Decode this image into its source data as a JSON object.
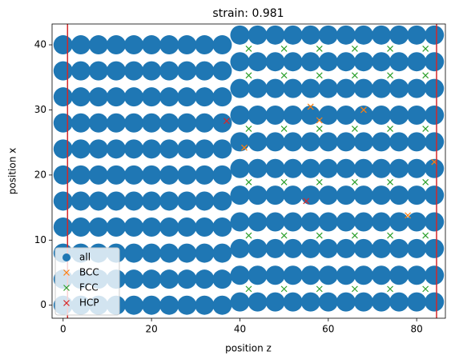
{
  "chart_data": {
    "type": "scatter",
    "title": "strain: 0.981",
    "xlabel": "position z",
    "ylabel": "position x",
    "xlim": [
      -2.5,
      86.5
    ],
    "ylim": [
      -2,
      43.2
    ],
    "xticks": [
      0,
      20,
      40,
      60,
      80
    ],
    "yticks": [
      0,
      10,
      20,
      30,
      40
    ],
    "legend": "lower left",
    "vlines": {
      "color": "#d62728",
      "values": [
        1,
        84.5
      ]
    },
    "series": [
      {
        "name": "all",
        "color": "#1f77b4",
        "marker": "o",
        "x": [
          0,
          0,
          0,
          0,
          0,
          0,
          0,
          0,
          0,
          0,
          0,
          4,
          4,
          4,
          4,
          4,
          4,
          4,
          4,
          4,
          4,
          4,
          8,
          8,
          8,
          8,
          8,
          8,
          8,
          8,
          8,
          8,
          8,
          12,
          12,
          12,
          12,
          12,
          12,
          12,
          12,
          12,
          12,
          12,
          16,
          16,
          16,
          16,
          16,
          16,
          16,
          16,
          16,
          16,
          16,
          20,
          20,
          20,
          20,
          20,
          20,
          20,
          20,
          20,
          20,
          20,
          24,
          24,
          24,
          24,
          24,
          24,
          24,
          24,
          24,
          24,
          24,
          28,
          28,
          28,
          28,
          28,
          28,
          28,
          28,
          28,
          28,
          28,
          32,
          32,
          32,
          32,
          32,
          32,
          32,
          32,
          32,
          32,
          32,
          36,
          36,
          36,
          36,
          36,
          36,
          36,
          36,
          36,
          36,
          36,
          40,
          40,
          40,
          40,
          40,
          40,
          40,
          40,
          40,
          40,
          40,
          44,
          44,
          44,
          44,
          44,
          44,
          44,
          44,
          44,
          44,
          44,
          48,
          48,
          48,
          48,
          48,
          48,
          48,
          48,
          48,
          48,
          48,
          52,
          52,
          52,
          52,
          52,
          52,
          52,
          52,
          52,
          52,
          52,
          56,
          56,
          56,
          56,
          56,
          56,
          56,
          56,
          56,
          56,
          56,
          60,
          60,
          60,
          60,
          60,
          60,
          60,
          60,
          60,
          60,
          60,
          64,
          64,
          64,
          64,
          64,
          64,
          64,
          64,
          64,
          64,
          64,
          68,
          68,
          68,
          68,
          68,
          68,
          68,
          68,
          68,
          68,
          68,
          72,
          72,
          72,
          72,
          72,
          72,
          72,
          72,
          72,
          72,
          72,
          76,
          76,
          76,
          76,
          76,
          76,
          76,
          76,
          76,
          76,
          76,
          80,
          80,
          80,
          80,
          80,
          80,
          80,
          80,
          80,
          80,
          80,
          84,
          84,
          84,
          84,
          84,
          84,
          84,
          84,
          84,
          84,
          84
        ],
        "values": [
          0,
          4,
          8,
          12,
          16,
          20,
          24,
          28,
          32,
          36,
          40,
          0,
          4,
          8,
          12,
          16,
          20,
          24,
          28,
          32,
          36,
          40,
          0,
          4,
          8,
          12,
          16,
          20,
          24,
          28,
          32,
          36,
          40,
          0,
          4,
          8,
          12,
          16,
          20,
          24,
          28,
          32,
          36,
          40,
          0,
          4,
          8,
          12,
          16,
          20,
          24,
          28,
          32,
          36,
          40,
          0,
          4,
          8,
          12,
          16,
          20,
          24,
          28,
          32,
          36,
          40,
          0,
          4,
          8,
          12,
          16,
          20,
          24,
          28,
          32,
          36,
          40,
          0,
          4,
          8,
          12,
          16,
          20,
          24,
          28,
          32,
          36,
          40,
          0,
          4,
          8,
          12,
          16,
          20,
          24,
          28,
          32,
          36,
          40,
          0,
          4,
          8,
          12,
          16,
          20,
          24,
          28,
          32,
          36,
          40,
          0.5,
          4.6,
          8.7,
          12.8,
          16.9,
          21,
          25.1,
          29.2,
          33.3,
          37.4,
          41.5,
          0.5,
          4.6,
          8.7,
          12.8,
          16.9,
          21,
          25.1,
          29.2,
          33.3,
          37.4,
          41.5,
          0.5,
          4.6,
          8.7,
          12.8,
          16.9,
          21,
          25.1,
          29.2,
          33.3,
          37.4,
          41.5,
          0.5,
          4.6,
          8.7,
          12.8,
          16.9,
          21,
          25.1,
          29.2,
          33.3,
          37.4,
          41.5,
          0.5,
          4.6,
          8.7,
          12.8,
          16.9,
          21,
          25.1,
          29.2,
          33.3,
          37.4,
          41.5,
          0.5,
          4.6,
          8.7,
          12.8,
          16.9,
          21,
          25.1,
          29.2,
          33.3,
          37.4,
          41.5,
          0.5,
          4.6,
          8.7,
          12.8,
          16.9,
          21,
          25.1,
          29.2,
          33.3,
          37.4,
          41.5,
          0.5,
          4.6,
          8.7,
          12.8,
          16.9,
          21,
          25.1,
          29.2,
          33.3,
          37.4,
          41.5,
          0.5,
          4.6,
          8.7,
          12.8,
          16.9,
          21,
          25.1,
          29.2,
          33.3,
          37.4,
          41.5,
          0.5,
          4.6,
          8.7,
          12.8,
          16.9,
          21,
          25.1,
          29.2,
          33.3,
          37.4,
          41.5,
          0.5,
          4.6,
          8.7,
          12.8,
          16.9,
          21,
          25.1,
          29.2,
          33.3,
          37.4,
          41.5,
          0.5,
          4.6,
          8.7,
          12.8,
          16.9,
          21,
          25.1,
          29.2,
          33.3,
          37.4,
          41.5
        ]
      },
      {
        "name": "BCC",
        "color": "#ff7f0e",
        "marker": "x",
        "x": [
          41,
          56,
          58,
          68,
          78,
          84
        ],
        "values": [
          24.2,
          30.5,
          28.4,
          30,
          13.8,
          22
        ]
      },
      {
        "name": "FCC",
        "color": "#2ca02c",
        "marker": "x",
        "x": [
          42,
          42,
          42,
          42,
          42,
          42,
          50,
          50,
          50,
          50,
          50,
          50,
          58,
          58,
          58,
          58,
          58,
          58,
          66,
          66,
          66,
          66,
          66,
          66,
          74,
          74,
          74,
          74,
          74,
          74,
          82,
          82,
          82,
          82,
          82,
          82
        ],
        "values": [
          2.5,
          10.7,
          18.9,
          27.1,
          35.3,
          39.4,
          2.5,
          10.7,
          18.9,
          27.1,
          35.3,
          39.4,
          2.5,
          10.7,
          18.9,
          27.1,
          35.3,
          39.4,
          2.5,
          10.7,
          18.9,
          27.1,
          35.3,
          39.4,
          2.5,
          10.7,
          18.9,
          27.1,
          35.3,
          39.4,
          2.5,
          10.7,
          18.9,
          27.1,
          35.3,
          39.4
        ]
      },
      {
        "name": "HCP",
        "color": "#d62728",
        "marker": "x",
        "x": [
          37,
          55
        ],
        "values": [
          28.3,
          16
        ]
      }
    ]
  }
}
